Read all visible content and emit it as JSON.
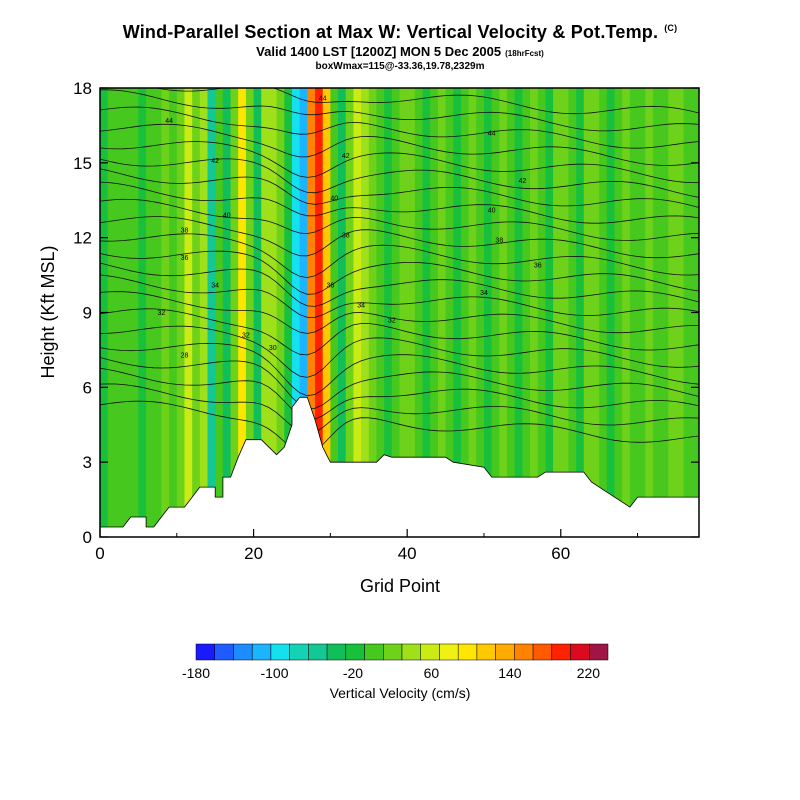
{
  "chart_data": {
    "type": "heatmap",
    "title": "Wind-Parallel Section at Max W: Vertical Velocity & Pot.Temp.",
    "title_mark": "(C)",
    "subtitle": "Valid 1400 LST [1200Z] MON 5 Dec 2005",
    "subtitle_note": "(18hrFcst)",
    "subtitle2": "boxWmax=115@-33.36,19.78,2329m",
    "xlabel": "Grid Point",
    "ylabel": "Height (Kft MSL)",
    "xlim": [
      0,
      78
    ],
    "ylim": [
      0,
      18
    ],
    "x_ticks": [
      0,
      20,
      40,
      60
    ],
    "y_ticks": [
      0,
      3,
      6,
      9,
      12,
      15,
      18
    ],
    "colorbar": {
      "label": "Vertical Velocity (cm/s)",
      "tick_labels": [
        "-180",
        "-100",
        "-20",
        "60",
        "140",
        "220"
      ],
      "tick_values": [
        -180,
        -100,
        -20,
        60,
        140,
        220
      ],
      "bin_edges": [
        -180,
        -160,
        -140,
        -120,
        -100,
        -80,
        -60,
        -40,
        -20,
        0,
        20,
        40,
        60,
        80,
        100,
        120,
        140,
        160,
        180,
        200,
        220,
        240
      ],
      "colors": [
        "#1a1aff",
        "#1e5cff",
        "#1e8cff",
        "#1ab4ff",
        "#14e0ee",
        "#14d2b4",
        "#14c896",
        "#10be5a",
        "#18c03c",
        "#46c81e",
        "#6ed21a",
        "#9ee01a",
        "#caec14",
        "#f0f014",
        "#ffe600",
        "#ffc800",
        "#ffaa00",
        "#ff8200",
        "#ff5a00",
        "#ff2200",
        "#dc0a1e",
        "#a01446"
      ]
    },
    "columns": [
      {
        "x": 0,
        "w": -10
      },
      {
        "x": 1,
        "w": 5
      },
      {
        "x": 2,
        "w": 10
      },
      {
        "x": 3,
        "w": 0
      },
      {
        "x": 4,
        "w": 8
      },
      {
        "x": 5,
        "w": -5
      },
      {
        "x": 6,
        "w": 12
      },
      {
        "x": 7,
        "w": 5
      },
      {
        "x": 8,
        "w": 20
      },
      {
        "x": 9,
        "w": 15
      },
      {
        "x": 10,
        "w": 30
      },
      {
        "x": 11,
        "w": 70
      },
      {
        "x": 12,
        "w": 20
      },
      {
        "x": 13,
        "w": 40
      },
      {
        "x": 14,
        "w": -60
      },
      {
        "x": 15,
        "w": 10
      },
      {
        "x": 16,
        "w": -40
      },
      {
        "x": 17,
        "w": 30
      },
      {
        "x": 18,
        "w": 110
      },
      {
        "x": 19,
        "w": 20
      },
      {
        "x": 20,
        "w": -30
      },
      {
        "x": 21,
        "w": 50
      },
      {
        "x": 22,
        "w": 40
      },
      {
        "x": 23,
        "w": 20
      },
      {
        "x": 24,
        "w": -20
      },
      {
        "x": 25,
        "w": -100
      },
      {
        "x": 26,
        "w": -120
      },
      {
        "x": 27,
        "w": 160
      },
      {
        "x": 28,
        "w": 210
      },
      {
        "x": 29,
        "w": 130
      },
      {
        "x": 30,
        "w": 10
      },
      {
        "x": 31,
        "w": -30
      },
      {
        "x": 32,
        "w": 30
      },
      {
        "x": 33,
        "w": 60
      },
      {
        "x": 34,
        "w": 40
      },
      {
        "x": 35,
        "w": 20
      },
      {
        "x": 36,
        "w": 0
      },
      {
        "x": 37,
        "w": -20
      },
      {
        "x": 38,
        "w": 10
      },
      {
        "x": 39,
        "w": 30
      },
      {
        "x": 40,
        "w": 20
      },
      {
        "x": 41,
        "w": 0
      },
      {
        "x": 42,
        "w": -10
      },
      {
        "x": 43,
        "w": 10
      },
      {
        "x": 44,
        "w": 30
      },
      {
        "x": 45,
        "w": 0
      },
      {
        "x": 46,
        "w": -20
      },
      {
        "x": 47,
        "w": 10
      },
      {
        "x": 48,
        "w": 25
      },
      {
        "x": 49,
        "w": 0
      },
      {
        "x": 50,
        "w": -15
      },
      {
        "x": 51,
        "w": 10
      },
      {
        "x": 52,
        "w": 20
      },
      {
        "x": 53,
        "w": 0
      },
      {
        "x": 54,
        "w": -20
      },
      {
        "x": 55,
        "w": 15
      },
      {
        "x": 56,
        "w": 30
      },
      {
        "x": 57,
        "w": 5
      },
      {
        "x": 58,
        "w": -15
      },
      {
        "x": 59,
        "w": 20
      },
      {
        "x": 60,
        "w": 25
      },
      {
        "x": 61,
        "w": 0
      },
      {
        "x": 62,
        "w": -10
      },
      {
        "x": 63,
        "w": 20
      },
      {
        "x": 64,
        "w": 30
      },
      {
        "x": 65,
        "w": 10
      },
      {
        "x": 66,
        "w": -5
      },
      {
        "x": 67,
        "w": 15
      },
      {
        "x": 68,
        "w": 20
      },
      {
        "x": 69,
        "w": 0
      },
      {
        "x": 70,
        "w": 10
      },
      {
        "x": 71,
        "w": 25
      },
      {
        "x": 72,
        "w": 10
      },
      {
        "x": 73,
        "w": 0
      },
      {
        "x": 74,
        "w": 20
      },
      {
        "x": 75,
        "w": 30
      },
      {
        "x": 76,
        "w": 15
      },
      {
        "x": 77,
        "w": 5
      }
    ],
    "terrain": [
      [
        0,
        0.4
      ],
      [
        3,
        0.4
      ],
      [
        4,
        0.8
      ],
      [
        6,
        0.8
      ],
      [
        6,
        0.4
      ],
      [
        7,
        0.4
      ],
      [
        8,
        0.8
      ],
      [
        9,
        1.2
      ],
      [
        11,
        1.2
      ],
      [
        12,
        1.6
      ],
      [
        13,
        2.0
      ],
      [
        14,
        2.0
      ],
      [
        15,
        2.0
      ],
      [
        15,
        1.6
      ],
      [
        16,
        1.6
      ],
      [
        16,
        2.4
      ],
      [
        17,
        2.4
      ],
      [
        18,
        3.2
      ],
      [
        19,
        3.9
      ],
      [
        21,
        3.9
      ],
      [
        22,
        3.6
      ],
      [
        23,
        3.3
      ],
      [
        24,
        3.6
      ],
      [
        25,
        4.5
      ],
      [
        25,
        5.2
      ],
      [
        26,
        5.6
      ],
      [
        27,
        5.6
      ],
      [
        28,
        4.7
      ],
      [
        29,
        3.6
      ],
      [
        30,
        3.0
      ],
      [
        36,
        3.0
      ],
      [
        37,
        3.3
      ],
      [
        38,
        3.2
      ],
      [
        40,
        3.2
      ],
      [
        41,
        3.2
      ],
      [
        45,
        3.2
      ],
      [
        46,
        3.0
      ],
      [
        50,
        2.8
      ],
      [
        51,
        2.4
      ],
      [
        57,
        2.4
      ],
      [
        58,
        2.6
      ],
      [
        63,
        2.6
      ],
      [
        64,
        2.2
      ],
      [
        65,
        2.0
      ],
      [
        66,
        1.8
      ],
      [
        67,
        1.6
      ],
      [
        68,
        1.4
      ],
      [
        69,
        1.2
      ],
      [
        70,
        1.6
      ],
      [
        71,
        1.6
      ],
      [
        78,
        1.6
      ]
    ],
    "contour_labels": [
      {
        "x": 9,
        "y": 16.6,
        "text": "44"
      },
      {
        "x": 15,
        "y": 15.0,
        "text": "42"
      },
      {
        "x": 16.5,
        "y": 12.8,
        "text": "40"
      },
      {
        "x": 11,
        "y": 12.2,
        "text": "38"
      },
      {
        "x": 11,
        "y": 11.1,
        "text": "36"
      },
      {
        "x": 15,
        "y": 10.0,
        "text": "34"
      },
      {
        "x": 8,
        "y": 8.9,
        "text": "32"
      },
      {
        "x": 19,
        "y": 8.0,
        "text": "32"
      },
      {
        "x": 22.5,
        "y": 7.5,
        "text": "30"
      },
      {
        "x": 11,
        "y": 7.2,
        "text": "28"
      },
      {
        "x": 29,
        "y": 17.5,
        "text": "44"
      },
      {
        "x": 32,
        "y": 15.2,
        "text": "42"
      },
      {
        "x": 30.5,
        "y": 13.5,
        "text": "40"
      },
      {
        "x": 32,
        "y": 12.0,
        "text": "38"
      },
      {
        "x": 30,
        "y": 10.0,
        "text": "36"
      },
      {
        "x": 34,
        "y": 9.2,
        "text": "34"
      },
      {
        "x": 38,
        "y": 8.6,
        "text": "32"
      },
      {
        "x": 51,
        "y": 16.1,
        "text": "44"
      },
      {
        "x": 55,
        "y": 14.2,
        "text": "42"
      },
      {
        "x": 51,
        "y": 13.0,
        "text": "40"
      },
      {
        "x": 52,
        "y": 11.8,
        "text": "38"
      },
      {
        "x": 57,
        "y": 10.8,
        "text": "36"
      },
      {
        "x": 50,
        "y": 9.7,
        "text": "34"
      }
    ]
  }
}
